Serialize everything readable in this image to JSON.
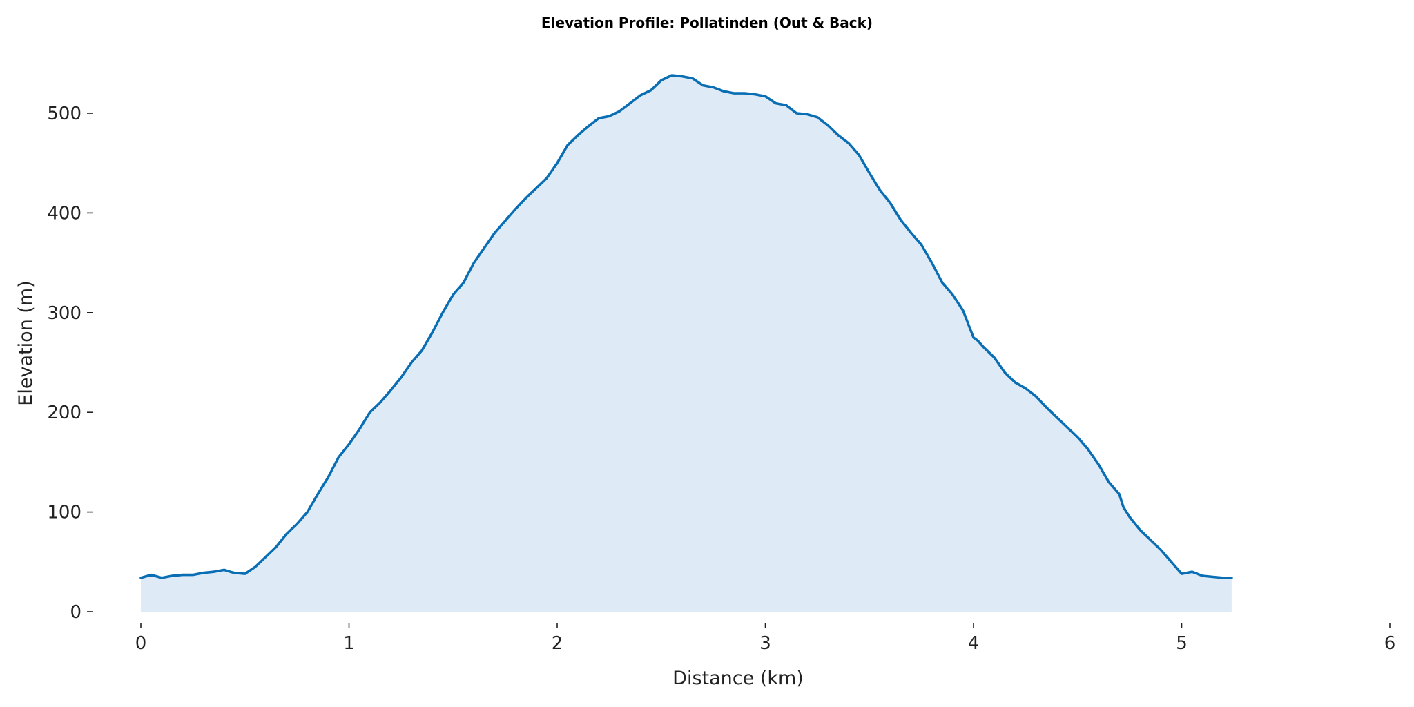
{
  "chart_data": {
    "type": "area",
    "title": "Elevation Profile: Pollatinden (Out & Back)",
    "xlabel": "Distance (km)",
    "ylabel": "Elevation (m)",
    "xlim": [
      0,
      6
    ],
    "ylim": [
      0,
      550
    ],
    "x_ticks": [
      0,
      1,
      2,
      3,
      4,
      5,
      6
    ],
    "y_ticks": [
      0,
      100,
      200,
      300,
      400,
      500
    ],
    "grid": false,
    "legend": "none",
    "colors": {
      "line": "#0a6eb4",
      "fill": "#deebf7"
    },
    "series": [
      {
        "x": [
          0,
          0.05,
          0.1,
          0.15,
          0.2,
          0.25,
          0.3,
          0.35,
          0.4,
          0.43,
          0.45,
          0.5,
          0.55,
          0.6,
          0.65,
          0.7,
          0.75,
          0.8,
          0.85,
          0.9,
          0.95,
          1.0,
          1.05,
          1.1,
          1.15,
          1.2,
          1.25,
          1.3,
          1.35,
          1.4,
          1.45,
          1.5,
          1.55,
          1.6,
          1.65,
          1.7,
          1.75,
          1.8,
          1.85,
          1.9,
          1.95,
          2.0,
          2.05,
          2.1,
          2.15,
          2.2,
          2.25,
          2.3,
          2.35,
          2.4,
          2.45,
          2.5,
          2.55,
          2.6,
          2.65,
          2.7,
          2.75,
          2.8,
          2.85,
          2.9,
          2.95,
          3.0,
          3.05,
          3.1,
          3.15,
          3.2,
          3.25,
          3.3,
          3.35,
          3.4,
          3.45,
          3.5,
          3.55,
          3.6,
          3.65,
          3.7,
          3.75,
          3.8,
          3.85,
          3.9,
          3.95,
          4.0,
          4.02,
          4.05,
          4.1,
          4.15,
          4.2,
          4.25,
          4.3,
          4.35,
          4.4,
          4.45,
          4.5,
          4.55,
          4.6,
          4.65,
          4.7,
          4.72,
          4.75,
          4.8,
          4.85,
          4.9,
          4.95,
          5.0,
          5.05,
          5.1,
          5.15,
          5.2,
          5.24
        ],
        "y": [
          34,
          37,
          34,
          36,
          37,
          37,
          39,
          40,
          42,
          40,
          39,
          38,
          45,
          55,
          65,
          78,
          88,
          100,
          118,
          135,
          155,
          168,
          183,
          200,
          210,
          222,
          235,
          250,
          262,
          280,
          300,
          318,
          330,
          350,
          365,
          380,
          392,
          404,
          415,
          425,
          435,
          450,
          468,
          478,
          487,
          495,
          497,
          502,
          510,
          518,
          523,
          533,
          538,
          537,
          535,
          528,
          526,
          522,
          520,
          520,
          519,
          517,
          510,
          508,
          500,
          499,
          496,
          488,
          478,
          470,
          458,
          440,
          423,
          410,
          393,
          380,
          368,
          350,
          330,
          318,
          302,
          275,
          272,
          265,
          255,
          240,
          230,
          224,
          216,
          205,
          195,
          185,
          175,
          163,
          148,
          130,
          118,
          105,
          95,
          82,
          72,
          62,
          50,
          38,
          40,
          36,
          35,
          34,
          34
        ]
      }
    ]
  }
}
